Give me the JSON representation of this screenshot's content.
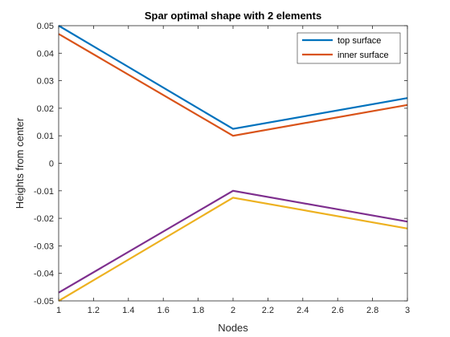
{
  "chart_data": {
    "type": "line",
    "title": "Spar optimal shape with 2 elements",
    "xlabel": "Nodes",
    "ylabel": "Heights from center",
    "xlim": [
      1,
      3
    ],
    "ylim": [
      -0.05,
      0.05
    ],
    "xticks": [
      "1",
      "1.2",
      "1.4",
      "1.6",
      "1.8",
      "2",
      "2.2",
      "2.4",
      "2.6",
      "2.8",
      "3"
    ],
    "yticks": [
      "-0.05",
      "-0.04",
      "-0.03",
      "-0.02",
      "-0.01",
      "0",
      "0.01",
      "0.02",
      "0.03",
      "0.04",
      "0.05"
    ],
    "grid": false,
    "legend_position": "top-right",
    "x": [
      1,
      2,
      3
    ],
    "series": [
      {
        "name": "top surface",
        "color": "#0072BD",
        "values": [
          0.05,
          0.0125,
          0.0237
        ]
      },
      {
        "name": "inner surface",
        "color": "#D95319",
        "values": [
          0.047,
          0.01,
          0.0212
        ]
      },
      {
        "name": "",
        "color": "#EDB120",
        "values": [
          -0.05,
          -0.0125,
          -0.0237
        ]
      },
      {
        "name": "",
        "color": "#7E2F8E",
        "values": [
          -0.047,
          -0.01,
          -0.0212
        ]
      }
    ]
  }
}
